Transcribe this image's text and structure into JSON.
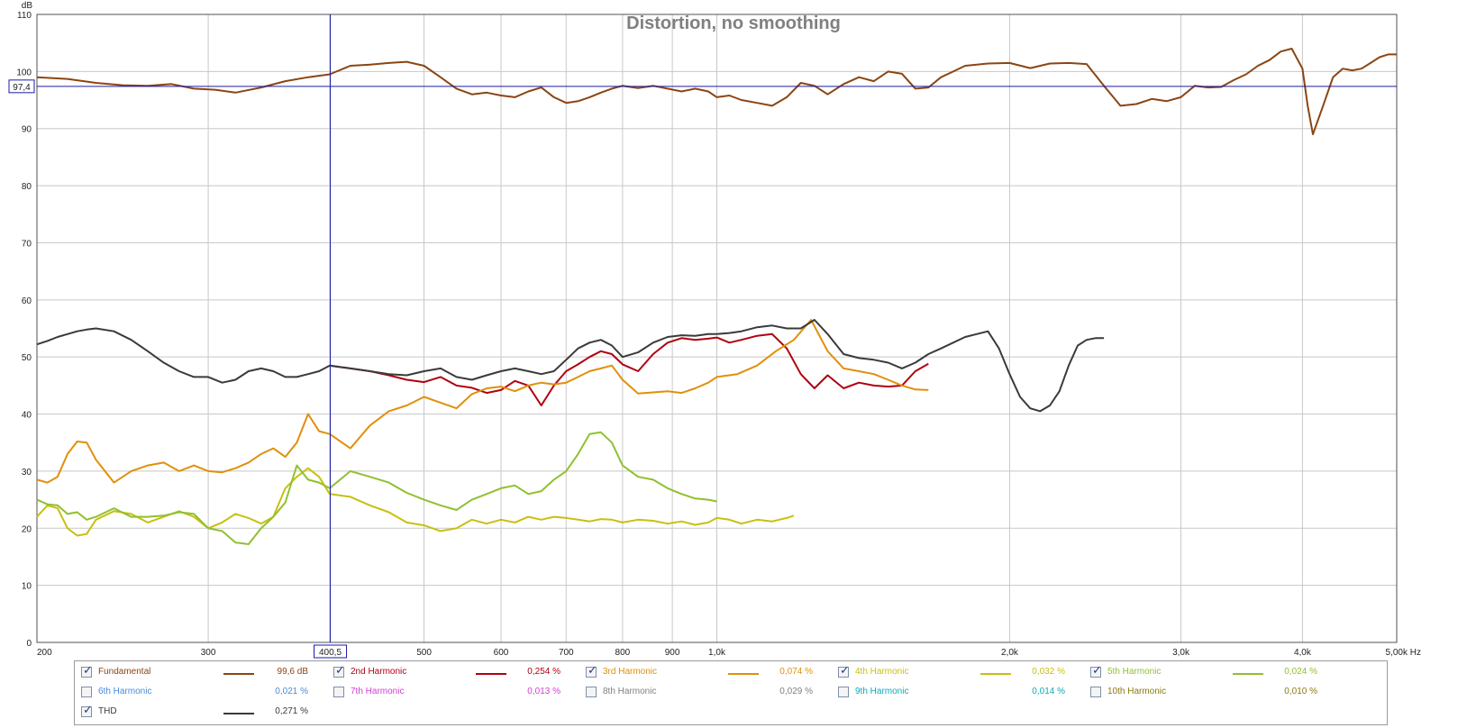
{
  "chart_data": {
    "type": "line",
    "title": "Distortion, no smoothing",
    "ylabel": "dB",
    "xlabel": "Hz",
    "x_scale": "log",
    "xlim": [
      200,
      5000
    ],
    "ylim": [
      0,
      110
    ],
    "grid": true,
    "x_ticks": [
      200,
      300,
      400,
      500,
      600,
      700,
      800,
      900,
      1000,
      2000,
      3000,
      4000,
      5000
    ],
    "x_tick_labels": [
      "200",
      "300",
      "",
      "500",
      "600",
      "700",
      "800",
      "900",
      "1,0k",
      "2,0k",
      "3,0k",
      "4,0k",
      "5,00k Hz"
    ],
    "y_ticks": [
      0,
      10,
      20,
      30,
      40,
      50,
      60,
      70,
      80,
      90,
      100,
      110
    ],
    "cursor": {
      "x": 400.5,
      "x_label": "400,5",
      "y": 97.4,
      "y_label": "97,4"
    },
    "legend_position": "bottom",
    "series": [
      {
        "name": "Fundamental",
        "color": "#8b4513",
        "x": [
          200,
          215,
          230,
          245,
          260,
          275,
          290,
          305,
          320,
          340,
          360,
          380,
          400,
          420,
          440,
          460,
          480,
          500,
          520,
          540,
          560,
          580,
          600,
          620,
          640,
          660,
          680,
          700,
          720,
          740,
          760,
          780,
          800,
          830,
          860,
          890,
          920,
          950,
          980,
          1000,
          1030,
          1060,
          1100,
          1140,
          1180,
          1220,
          1260,
          1300,
          1350,
          1400,
          1450,
          1500,
          1550,
          1600,
          1650,
          1700,
          1750,
          1800,
          1850,
          1900,
          2000,
          2100,
          2200,
          2300,
          2400,
          2500,
          2600,
          2700,
          2800,
          2900,
          3000,
          3100,
          3200,
          3300,
          3400,
          3500,
          3600,
          3700,
          3800,
          3900,
          4000,
          4050,
          4100,
          4200,
          4300,
          4400,
          4500,
          4600,
          4700,
          4800,
          4900,
          5000
        ],
        "y": [
          99,
          98.7,
          98,
          97.6,
          97.5,
          97.8,
          97,
          96.8,
          96.3,
          97.2,
          98.3,
          99,
          99.5,
          101,
          101.2,
          101.5,
          101.7,
          101,
          99,
          97,
          96,
          96.3,
          95.8,
          95.5,
          96.5,
          97.2,
          95.5,
          94.5,
          94.8,
          95.5,
          96.3,
          97,
          97.5,
          97.1,
          97.5,
          97,
          96.5,
          97,
          96.5,
          95.5,
          95.8,
          95,
          94.5,
          94,
          95.5,
          98,
          97.5,
          96,
          97.8,
          99,
          98.3,
          100,
          99.6,
          97,
          97.2,
          99,
          100,
          101,
          101.2,
          101.4,
          101.5,
          100.6,
          101.4,
          101.5,
          101.3,
          97.5,
          94,
          94.3,
          95.2,
          94.8,
          95.5,
          97.5,
          97.2,
          97.3,
          98.5,
          99.5,
          101,
          102,
          103.5,
          104,
          100.5,
          94,
          89,
          94,
          99,
          100.5,
          100.2,
          100.5,
          101.5,
          102.5,
          103,
          103
        ]
      },
      {
        "name": "2nd Harmonic",
        "color": "#b00010",
        "x": [
          400,
          420,
          440,
          460,
          480,
          500,
          520,
          540,
          560,
          580,
          600,
          620,
          640,
          660,
          680,
          700,
          720,
          740,
          760,
          780,
          800,
          830,
          860,
          890,
          920,
          950,
          980,
          1000,
          1030,
          1060,
          1100,
          1140,
          1180,
          1220,
          1260,
          1300,
          1350,
          1400,
          1450,
          1500,
          1550,
          1600,
          1650
        ],
        "y": [
          48.5,
          48,
          47.5,
          46.8,
          46,
          45.6,
          46.5,
          45,
          44.6,
          43.7,
          44.2,
          45.8,
          45,
          41.5,
          45,
          47.5,
          48.7,
          50,
          51,
          50.5,
          48.7,
          47.5,
          50.5,
          52.5,
          53.3,
          53,
          53.2,
          53.4,
          52.5,
          53,
          53.7,
          54,
          51.5,
          47,
          44.5,
          46.8,
          44.5,
          45.5,
          45,
          44.8,
          45,
          47.5,
          48.8
        ]
      },
      {
        "name": "3rd Harmonic",
        "color": "#e0900a",
        "x": [
          200,
          205,
          210,
          215,
          220,
          225,
          230,
          240,
          250,
          260,
          270,
          280,
          290,
          300,
          310,
          320,
          330,
          340,
          350,
          360,
          370,
          380,
          390,
          400,
          420,
          440,
          460,
          480,
          500,
          520,
          540,
          560,
          580,
          600,
          620,
          640,
          660,
          680,
          700,
          720,
          740,
          760,
          780,
          800,
          830,
          860,
          890,
          920,
          950,
          980,
          1000,
          1050,
          1100,
          1150,
          1200,
          1250,
          1300,
          1350,
          1400,
          1450,
          1500,
          1550,
          1600,
          1650
        ],
        "y": [
          28.5,
          28,
          29,
          33,
          35.2,
          35,
          32,
          28,
          30,
          31,
          31.5,
          30,
          31,
          30,
          29.8,
          30.5,
          31.5,
          33,
          34,
          32.5,
          35,
          40,
          37,
          36.5,
          34,
          38,
          40.5,
          41.5,
          43,
          42,
          41,
          43.5,
          44.5,
          44.8,
          44,
          45,
          45.5,
          45.2,
          45.5,
          46.5,
          47.5,
          48,
          48.5,
          46,
          43.6,
          43.8,
          44,
          43.7,
          44.5,
          45.5,
          46.5,
          47,
          48.5,
          51,
          53,
          56.5,
          51,
          48,
          47.5,
          47,
          46,
          45,
          44.3,
          44.2
        ]
      },
      {
        "name": "4th Harmonic",
        "color": "#c8c010",
        "x": [
          200,
          205,
          210,
          215,
          220,
          225,
          230,
          240,
          250,
          260,
          270,
          280,
          290,
          300,
          310,
          320,
          330,
          340,
          350,
          360,
          370,
          380,
          390,
          400,
          420,
          440,
          460,
          480,
          500,
          520,
          540,
          560,
          580,
          600,
          620,
          640,
          660,
          680,
          700,
          720,
          740,
          760,
          780,
          800,
          830,
          860,
          890,
          920,
          950,
          980,
          1000,
          1030,
          1060,
          1100,
          1140,
          1180,
          1200
        ],
        "y": [
          22,
          24,
          23.5,
          20,
          18.7,
          19,
          21.5,
          23,
          22.5,
          21,
          22,
          23,
          22,
          20,
          21,
          22.5,
          21.8,
          20.8,
          22,
          27,
          29,
          30.5,
          29,
          26,
          25.5,
          24,
          22.8,
          21,
          20.5,
          19.5,
          20,
          21.5,
          20.8,
          21.5,
          21,
          22,
          21.5,
          22,
          21.8,
          21.5,
          21.2,
          21.6,
          21.5,
          21,
          21.5,
          21.3,
          20.8,
          21.2,
          20.6,
          21,
          21.8,
          21.5,
          20.8,
          21.5,
          21.2,
          21.8,
          22.2
        ]
      },
      {
        "name": "5th Harmonic",
        "color": "#90c030",
        "x": [
          200,
          205,
          210,
          215,
          220,
          225,
          230,
          240,
          250,
          260,
          270,
          280,
          290,
          300,
          310,
          320,
          330,
          340,
          350,
          360,
          370,
          380,
          390,
          400,
          420,
          440,
          460,
          480,
          500,
          520,
          540,
          560,
          580,
          600,
          620,
          640,
          660,
          680,
          700,
          720,
          740,
          760,
          780,
          800,
          830,
          860,
          890,
          920,
          950,
          980,
          1000
        ],
        "y": [
          25,
          24.2,
          24,
          22.5,
          22.8,
          21.5,
          22,
          23.5,
          22,
          22,
          22.2,
          22.8,
          22.5,
          20,
          19.5,
          17.5,
          17.2,
          20,
          22,
          24.5,
          31,
          28.5,
          28,
          27,
          30,
          29,
          28,
          26.2,
          25,
          24,
          23.2,
          25,
          26,
          27,
          27.5,
          26,
          26.5,
          28.5,
          30,
          33,
          36.5,
          36.8,
          35,
          31,
          29,
          28.5,
          27,
          26,
          25.2,
          25,
          24.7
        ]
      },
      {
        "name": "6th Harmonic",
        "color": "#4a8ad6",
        "x": [],
        "y": []
      },
      {
        "name": "7th Harmonic",
        "color": "#d040d0",
        "x": [],
        "y": []
      },
      {
        "name": "8th Harmonic",
        "color": "#808080",
        "x": [],
        "y": []
      },
      {
        "name": "9th Harmonic",
        "color": "#10a8b8",
        "x": [],
        "y": []
      },
      {
        "name": "10th Harmonic",
        "color": "#8a7a10",
        "x": [],
        "y": []
      },
      {
        "name": "THD",
        "color": "#3a3a3a",
        "x": [
          200,
          205,
          210,
          215,
          220,
          225,
          230,
          240,
          250,
          260,
          270,
          280,
          290,
          300,
          310,
          320,
          330,
          340,
          350,
          360,
          370,
          380,
          390,
          400,
          420,
          440,
          460,
          480,
          500,
          520,
          540,
          560,
          580,
          600,
          620,
          640,
          660,
          680,
          700,
          720,
          740,
          760,
          780,
          800,
          830,
          860,
          890,
          920,
          950,
          980,
          1000,
          1030,
          1060,
          1100,
          1140,
          1180,
          1220,
          1260,
          1300,
          1350,
          1400,
          1450,
          1500,
          1550,
          1600,
          1650,
          1700,
          1750,
          1800,
          1850,
          1900,
          1950,
          2000,
          2050,
          2100,
          2150,
          2200,
          2250,
          2300,
          2350,
          2400,
          2450,
          2500
        ],
        "y": [
          52.2,
          52.8,
          53.5,
          54,
          54.5,
          54.8,
          55,
          54.5,
          53,
          51,
          49,
          47.5,
          46.5,
          46.5,
          45.5,
          46,
          47.5,
          48,
          47.5,
          46.5,
          46.5,
          47,
          47.5,
          48.5,
          48,
          47.5,
          47,
          46.8,
          47.5,
          48,
          46.5,
          46,
          46.8,
          47.5,
          48,
          47.5,
          47,
          47.5,
          49.5,
          51.5,
          52.5,
          53,
          52,
          50,
          50.8,
          52.5,
          53.5,
          53.8,
          53.7,
          54,
          54,
          54.2,
          54.5,
          55.2,
          55.5,
          55,
          55,
          56.5,
          54,
          50.5,
          49.8,
          49.5,
          49,
          48,
          49,
          50.5,
          51.5,
          52.5,
          53.5,
          54,
          54.5,
          51.5,
          47,
          43,
          41,
          40.5,
          41.5,
          44,
          48.5,
          52,
          53,
          53.3,
          53.3
        ]
      }
    ]
  },
  "legend": [
    {
      "name": "Fundamental",
      "value": "99,6 dB",
      "checked": true,
      "color": "#8b4513"
    },
    {
      "name": "2nd Harmonic",
      "value": "0,254 %",
      "checked": true,
      "color": "#b00010"
    },
    {
      "name": "3rd Harmonic",
      "value": "0,074 %",
      "checked": true,
      "color": "#e0900a"
    },
    {
      "name": "4th Harmonic",
      "value": "0,032 %",
      "checked": true,
      "color": "#c8c010"
    },
    {
      "name": "5th Harmonic",
      "value": "0,024 %",
      "checked": true,
      "color": "#90c030"
    },
    {
      "name": "6th Harmonic",
      "value": "0,021 %",
      "checked": false,
      "color": "#4a8ad6"
    },
    {
      "name": "7th Harmonic",
      "value": "0,013 %",
      "checked": false,
      "color": "#d040d0"
    },
    {
      "name": "8th Harmonic",
      "value": "0,029 %",
      "checked": false,
      "color": "#808080"
    },
    {
      "name": "9th Harmonic",
      "value": "0,014 %",
      "checked": false,
      "color": "#10a8b8"
    },
    {
      "name": "10th Harmonic",
      "value": "0,010 %",
      "checked": false,
      "color": "#8a7a10"
    },
    {
      "name": "THD",
      "value": "0,271 %",
      "checked": true,
      "color": "#3a3a3a"
    }
  ],
  "checkmark": "✓"
}
